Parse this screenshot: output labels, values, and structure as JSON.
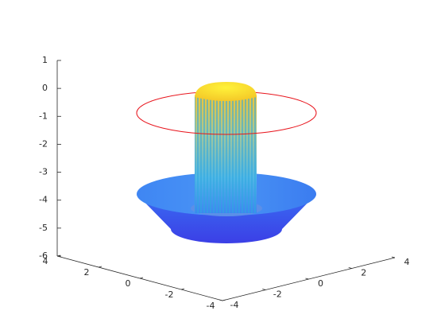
{
  "chart_data": {
    "type": "surface",
    "xlim": [
      -4,
      4
    ],
    "xticks": [
      -4,
      -2,
      0,
      2,
      4
    ],
    "ylim": [
      -4,
      4
    ],
    "yticks": [
      -4,
      -2,
      0,
      2,
      4
    ],
    "zlim": [
      -6,
      1
    ],
    "zticks": [
      -6,
      -5,
      -4,
      -3,
      -2,
      -1,
      0,
      1
    ]
  }
}
